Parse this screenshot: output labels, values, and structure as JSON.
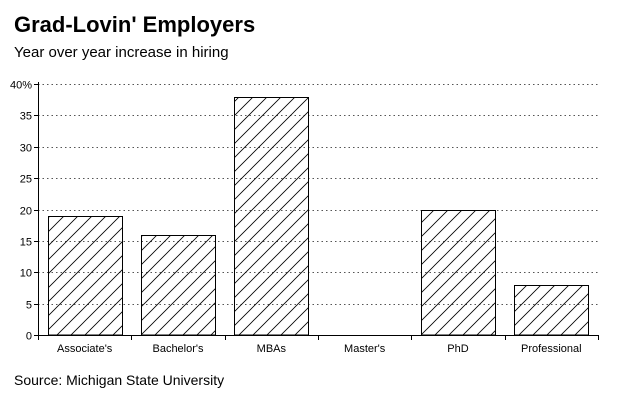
{
  "title": "Grad-Lovin' Employers",
  "subtitle": "Year over year increase in hiring",
  "source": "Source: Michigan State University",
  "chart_data": {
    "type": "bar",
    "categories": [
      "Associate's",
      "Bachelor's",
      "MBAs",
      "Master's",
      "PhD",
      "Professional"
    ],
    "values": [
      19,
      16,
      38,
      0,
      20,
      8
    ],
    "ylim": [
      0,
      40
    ],
    "yticks": [
      0,
      5,
      10,
      15,
      20,
      25,
      30,
      35,
      40
    ],
    "ytick_labels": [
      "0",
      "5",
      "10",
      "15",
      "20",
      "25",
      "30",
      "35",
      "40%"
    ],
    "xlabel": "",
    "ylabel": "",
    "grid": true,
    "legend": "none",
    "bar_fill": "diagonal-hatch",
    "bar_stroke": "#000000",
    "grid_color": "#555555"
  }
}
